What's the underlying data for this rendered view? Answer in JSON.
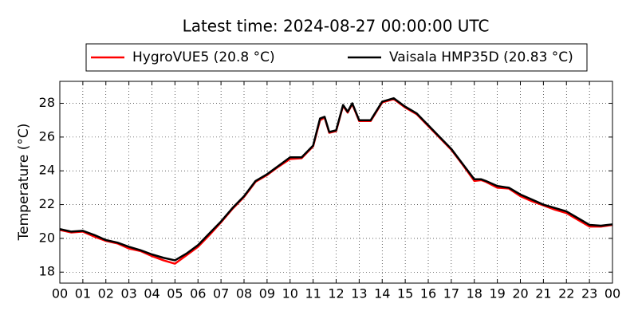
{
  "chart_data": {
    "type": "line",
    "title": "Latest time: 2024-08-27 00:00:00 UTC",
    "y_label": "Temperature (°C)",
    "x": [
      0,
      0.5,
      1,
      1.5,
      2,
      2.5,
      3,
      3.5,
      4,
      4.5,
      5,
      5.5,
      6,
      6.5,
      7,
      7.5,
      8,
      8.5,
      9,
      9.5,
      10,
      10.5,
      11,
      11.3,
      11.5,
      11.7,
      12,
      12.3,
      12.5,
      12.7,
      13,
      13.5,
      14,
      14.5,
      15,
      15.5,
      16,
      16.5,
      17,
      17.5,
      18,
      18.3,
      18.5,
      19,
      19.5,
      20,
      20.5,
      21,
      21.5,
      22,
      22.5,
      23,
      23.5,
      24
    ],
    "series": [
      {
        "name": "HygroVUE5 (20.8 °C)",
        "color": "#ff0000",
        "values": [
          20.5,
          20.35,
          20.4,
          20.1,
          19.85,
          19.7,
          19.4,
          19.25,
          18.95,
          18.7,
          18.5,
          19.0,
          19.5,
          20.2,
          20.95,
          21.75,
          22.45,
          23.35,
          23.75,
          24.25,
          24.7,
          24.75,
          25.45,
          27.0,
          27.15,
          26.25,
          26.35,
          27.85,
          27.45,
          27.95,
          26.95,
          26.95,
          28.05,
          28.25,
          27.75,
          27.35,
          26.65,
          25.95,
          25.25,
          24.35,
          23.4,
          23.45,
          23.35,
          23.0,
          22.95,
          22.5,
          22.2,
          21.95,
          21.7,
          21.5,
          21.1,
          20.7,
          20.7,
          20.8
        ]
      },
      {
        "name": "Vaisala HMP35D (20.83 °C)",
        "color": "#000000",
        "values": [
          20.55,
          20.4,
          20.45,
          20.2,
          19.9,
          19.75,
          19.5,
          19.3,
          19.05,
          18.85,
          18.7,
          19.1,
          19.6,
          20.3,
          21.0,
          21.8,
          22.5,
          23.4,
          23.8,
          24.3,
          24.8,
          24.8,
          25.5,
          27.1,
          27.2,
          26.3,
          26.4,
          27.9,
          27.5,
          28.0,
          27.0,
          27.0,
          28.1,
          28.3,
          27.8,
          27.4,
          26.7,
          26.0,
          25.3,
          24.4,
          23.5,
          23.5,
          23.4,
          23.1,
          23.0,
          22.6,
          22.3,
          22.0,
          21.8,
          21.6,
          21.2,
          20.8,
          20.75,
          20.83
        ]
      }
    ],
    "xlim": [
      0,
      24
    ],
    "xticks": [
      {
        "value": 0,
        "label": "00"
      },
      {
        "value": 1,
        "label": "01"
      },
      {
        "value": 2,
        "label": "02"
      },
      {
        "value": 3,
        "label": "03"
      },
      {
        "value": 4,
        "label": "04"
      },
      {
        "value": 5,
        "label": "05"
      },
      {
        "value": 6,
        "label": "06"
      },
      {
        "value": 7,
        "label": "07"
      },
      {
        "value": 8,
        "label": "08"
      },
      {
        "value": 9,
        "label": "09"
      },
      10,
      11,
      12,
      13,
      14,
      15,
      16,
      17,
      18,
      19,
      20,
      21,
      22,
      23,
      {
        "value": 24,
        "label": "00"
      }
    ],
    "ylim": [
      17.35,
      29.3
    ],
    "yticks": [
      18,
      20,
      22,
      24,
      26,
      28
    ],
    "grid": true,
    "legend": "top"
  }
}
